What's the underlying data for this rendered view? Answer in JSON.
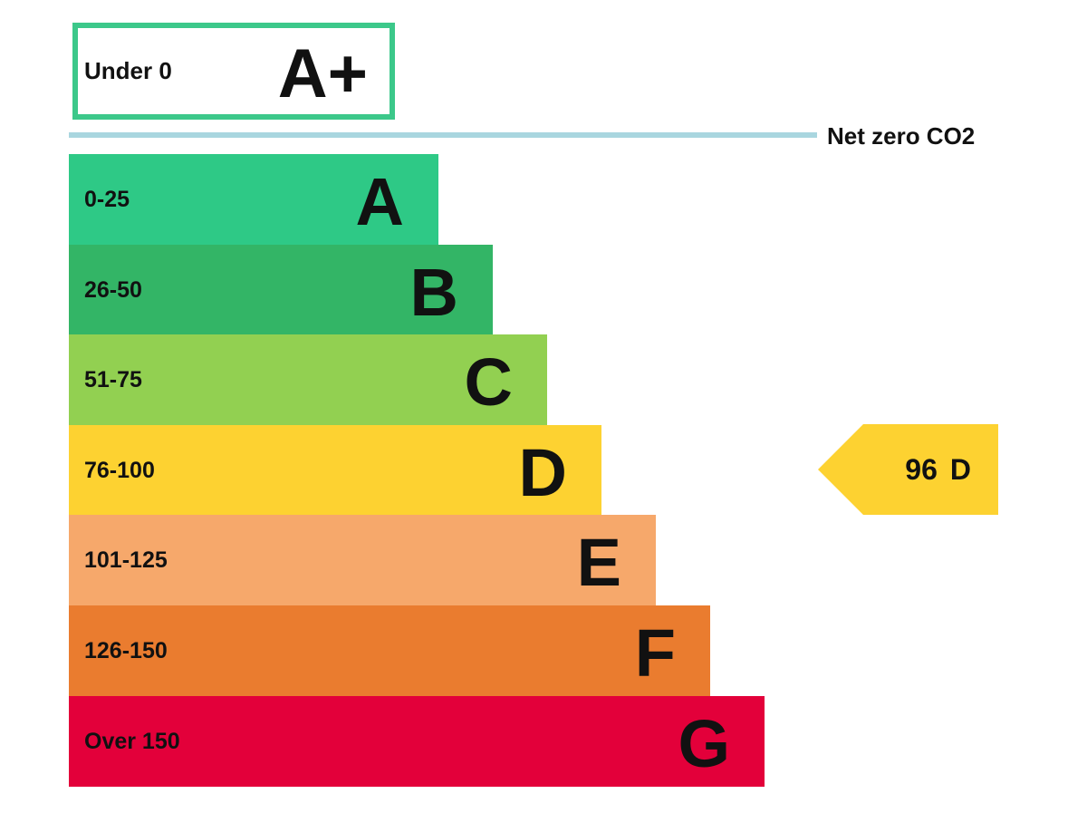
{
  "chart_data": {
    "type": "bar",
    "top_band": {
      "range": "Under 0",
      "letter": "A+",
      "color": "#3cc88a"
    },
    "net_zero_label": "Net zero CO2",
    "net_zero_line_color": "#a9d6df",
    "bands": [
      {
        "range": "0-25",
        "letter": "A",
        "color": "#2ec986"
      },
      {
        "range": "26-50",
        "letter": "B",
        "color": "#33b566"
      },
      {
        "range": "51-75",
        "letter": "C",
        "color": "#92d051"
      },
      {
        "range": "76-100",
        "letter": "D",
        "color": "#fdd231"
      },
      {
        "range": "101-125",
        "letter": "E",
        "color": "#f6a86b"
      },
      {
        "range": "126-150",
        "letter": "F",
        "color": "#ea7c2f"
      },
      {
        "range": "Over 150",
        "letter": "G",
        "color": "#e3003a"
      }
    ],
    "current": {
      "value": "96",
      "letter": "D",
      "color": "#fdd231"
    }
  }
}
